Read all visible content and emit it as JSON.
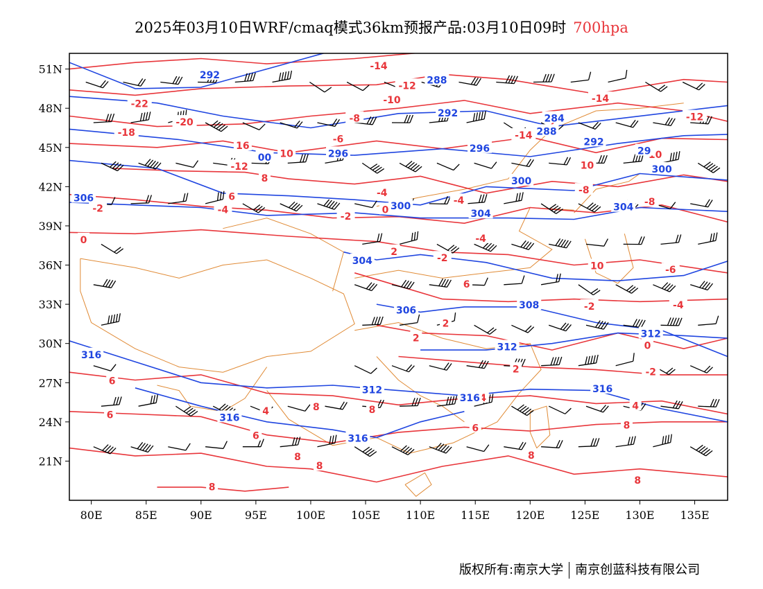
{
  "title": {
    "main": "2025年03月10日WRF/cmaq模式36km预报产品:03月10日09时",
    "level": "700hpa",
    "level_color": "#e8353a"
  },
  "map": {
    "lon_range": [
      78,
      138
    ],
    "lat_range": [
      18,
      52.2
    ],
    "lon_ticks": [
      {
        "v": 80,
        "label": "80E"
      },
      {
        "v": 85,
        "label": "85E"
      },
      {
        "v": 90,
        "label": "90E"
      },
      {
        "v": 95,
        "label": "95E"
      },
      {
        "v": 100,
        "label": "100E"
      },
      {
        "v": 105,
        "label": "105E"
      },
      {
        "v": 110,
        "label": "110E"
      },
      {
        "v": 115,
        "label": "115E"
      },
      {
        "v": 120,
        "label": "120E"
      },
      {
        "v": 125,
        "label": "125E"
      },
      {
        "v": 130,
        "label": "130E"
      },
      {
        "v": 135,
        "label": "135E"
      }
    ],
    "lat_ticks": [
      {
        "v": 51,
        "label": "51N"
      },
      {
        "v": 48,
        "label": "48N"
      },
      {
        "v": 45,
        "label": "45N"
      },
      {
        "v": 42,
        "label": "42N"
      },
      {
        "v": 39,
        "label": "39N"
      },
      {
        "v": 36,
        "label": "36N"
      },
      {
        "v": 33,
        "label": "33N"
      },
      {
        "v": 30,
        "label": "30N"
      },
      {
        "v": 27,
        "label": "27N"
      },
      {
        "v": 24,
        "label": "24N"
      },
      {
        "v": 21,
        "label": "21N"
      }
    ],
    "colors": {
      "height_contour": "#1f45e0",
      "temperature_contour": "#e8353a",
      "boundary": "#e08a35",
      "wind_barb": "#000000"
    },
    "height_labels": [
      {
        "lon": 90.8,
        "lat": 50.6,
        "text": "292"
      },
      {
        "lon": 111.5,
        "lat": 50.2,
        "text": "288"
      },
      {
        "lon": 112.5,
        "lat": 47.7,
        "text": "292"
      },
      {
        "lon": 122.2,
        "lat": 47.3,
        "text": "284"
      },
      {
        "lon": 121.5,
        "lat": 46.3,
        "text": "288"
      },
      {
        "lon": 125.8,
        "lat": 45.5,
        "text": "292"
      },
      {
        "lon": 102.5,
        "lat": 44.6,
        "text": "296"
      },
      {
        "lon": 115.4,
        "lat": 45.0,
        "text": "296"
      },
      {
        "lon": 95.8,
        "lat": 44.3,
        "text": "00"
      },
      {
        "lon": 119.2,
        "lat": 42.5,
        "text": "300"
      },
      {
        "lon": 130.4,
        "lat": 44.8,
        "text": "29"
      },
      {
        "lon": 132.0,
        "lat": 43.4,
        "text": "300"
      },
      {
        "lon": 79.3,
        "lat": 41.2,
        "text": "306"
      },
      {
        "lon": 108.2,
        "lat": 40.6,
        "text": "300"
      },
      {
        "lon": 115.5,
        "lat": 40.0,
        "text": "304"
      },
      {
        "lon": 128.5,
        "lat": 40.5,
        "text": "304"
      },
      {
        "lon": 104.7,
        "lat": 36.4,
        "text": "304"
      },
      {
        "lon": 108.7,
        "lat": 32.6,
        "text": "306"
      },
      {
        "lon": 119.9,
        "lat": 33.0,
        "text": "308"
      },
      {
        "lon": 117.9,
        "lat": 29.8,
        "text": "312"
      },
      {
        "lon": 131.0,
        "lat": 30.8,
        "text": "312"
      },
      {
        "lon": 80.0,
        "lat": 29.2,
        "text": "316"
      },
      {
        "lon": 105.6,
        "lat": 26.5,
        "text": "312"
      },
      {
        "lon": 114.5,
        "lat": 25.9,
        "text": "316"
      },
      {
        "lon": 126.6,
        "lat": 26.6,
        "text": "316"
      },
      {
        "lon": 92.6,
        "lat": 24.4,
        "text": "316"
      },
      {
        "lon": 104.3,
        "lat": 22.8,
        "text": "316"
      }
    ],
    "temp_labels": [
      {
        "lon": 106.2,
        "lat": 51.3,
        "text": "-14"
      },
      {
        "lon": 108.8,
        "lat": 49.8,
        "text": "-12"
      },
      {
        "lon": 107.4,
        "lat": 48.7,
        "text": "-10"
      },
      {
        "lon": 84.4,
        "lat": 48.4,
        "text": "-22"
      },
      {
        "lon": 88.5,
        "lat": 47.0,
        "text": "-20"
      },
      {
        "lon": 83.2,
        "lat": 46.2,
        "text": "-18"
      },
      {
        "lon": 104.0,
        "lat": 47.3,
        "text": "-8"
      },
      {
        "lon": 126.4,
        "lat": 48.8,
        "text": "-14"
      },
      {
        "lon": 122.0,
        "lat": 46.9,
        "text": "2"
      },
      {
        "lon": 119.4,
        "lat": 46.0,
        "text": "-14"
      },
      {
        "lon": 135.0,
        "lat": 47.4,
        "text": "-12"
      },
      {
        "lon": 93.8,
        "lat": 45.2,
        "text": "16"
      },
      {
        "lon": 97.8,
        "lat": 44.6,
        "text": "10"
      },
      {
        "lon": 93.5,
        "lat": 43.6,
        "text": "-12"
      },
      {
        "lon": 95.8,
        "lat": 42.7,
        "text": "8"
      },
      {
        "lon": 102.5,
        "lat": 45.7,
        "text": "-6"
      },
      {
        "lon": 125.2,
        "lat": 43.7,
        "text": "10"
      },
      {
        "lon": 131.4,
        "lat": 44.5,
        "text": "10"
      },
      {
        "lon": 124.9,
        "lat": 41.8,
        "text": "-8"
      },
      {
        "lon": 106.5,
        "lat": 41.6,
        "text": "-4"
      },
      {
        "lon": 92.8,
        "lat": 41.3,
        "text": "6"
      },
      {
        "lon": 92.0,
        "lat": 40.3,
        "text": "-4"
      },
      {
        "lon": 80.6,
        "lat": 40.4,
        "text": "-2"
      },
      {
        "lon": 103.2,
        "lat": 39.8,
        "text": "-2"
      },
      {
        "lon": 113.5,
        "lat": 41.0,
        "text": "-4"
      },
      {
        "lon": 130.9,
        "lat": 40.9,
        "text": "-8"
      },
      {
        "lon": 79.3,
        "lat": 38.0,
        "text": "0"
      },
      {
        "lon": 106.8,
        "lat": 40.3,
        "text": "0"
      },
      {
        "lon": 107.6,
        "lat": 37.1,
        "text": "2"
      },
      {
        "lon": 112.0,
        "lat": 36.6,
        "text": "-2"
      },
      {
        "lon": 115.5,
        "lat": 38.1,
        "text": "-4"
      },
      {
        "lon": 126.1,
        "lat": 36.0,
        "text": "10"
      },
      {
        "lon": 132.8,
        "lat": 35.7,
        "text": "-6"
      },
      {
        "lon": 114.2,
        "lat": 34.6,
        "text": "6"
      },
      {
        "lon": 125.4,
        "lat": 32.9,
        "text": "-2"
      },
      {
        "lon": 133.5,
        "lat": 33.0,
        "text": "-4"
      },
      {
        "lon": 112.3,
        "lat": 31.6,
        "text": "2"
      },
      {
        "lon": 109.6,
        "lat": 30.5,
        "text": "2"
      },
      {
        "lon": 130.7,
        "lat": 29.9,
        "text": "0"
      },
      {
        "lon": 118.7,
        "lat": 28.1,
        "text": "2"
      },
      {
        "lon": 131.0,
        "lat": 27.9,
        "text": "-2"
      },
      {
        "lon": 81.9,
        "lat": 27.2,
        "text": "6"
      },
      {
        "lon": 115.7,
        "lat": 25.9,
        "text": "4"
      },
      {
        "lon": 129.6,
        "lat": 25.3,
        "text": "4"
      },
      {
        "lon": 95.9,
        "lat": 24.9,
        "text": "4"
      },
      {
        "lon": 100.5,
        "lat": 25.2,
        "text": "8"
      },
      {
        "lon": 105.6,
        "lat": 25.0,
        "text": "8"
      },
      {
        "lon": 81.7,
        "lat": 24.6,
        "text": "6"
      },
      {
        "lon": 128.8,
        "lat": 23.8,
        "text": "8"
      },
      {
        "lon": 95.0,
        "lat": 23.0,
        "text": "6"
      },
      {
        "lon": 115.0,
        "lat": 23.6,
        "text": "6"
      },
      {
        "lon": 98.8,
        "lat": 21.4,
        "text": "8"
      },
      {
        "lon": 100.8,
        "lat": 20.7,
        "text": "8"
      },
      {
        "lon": 120.1,
        "lat": 21.5,
        "text": "8"
      },
      {
        "lon": 91.0,
        "lat": 19.1,
        "text": "8"
      },
      {
        "lon": 129.8,
        "lat": 19.6,
        "text": "8"
      }
    ]
  },
  "footer": {
    "left": "版权所有:南京大学",
    "right": "南京创蓝科技有限公司"
  }
}
